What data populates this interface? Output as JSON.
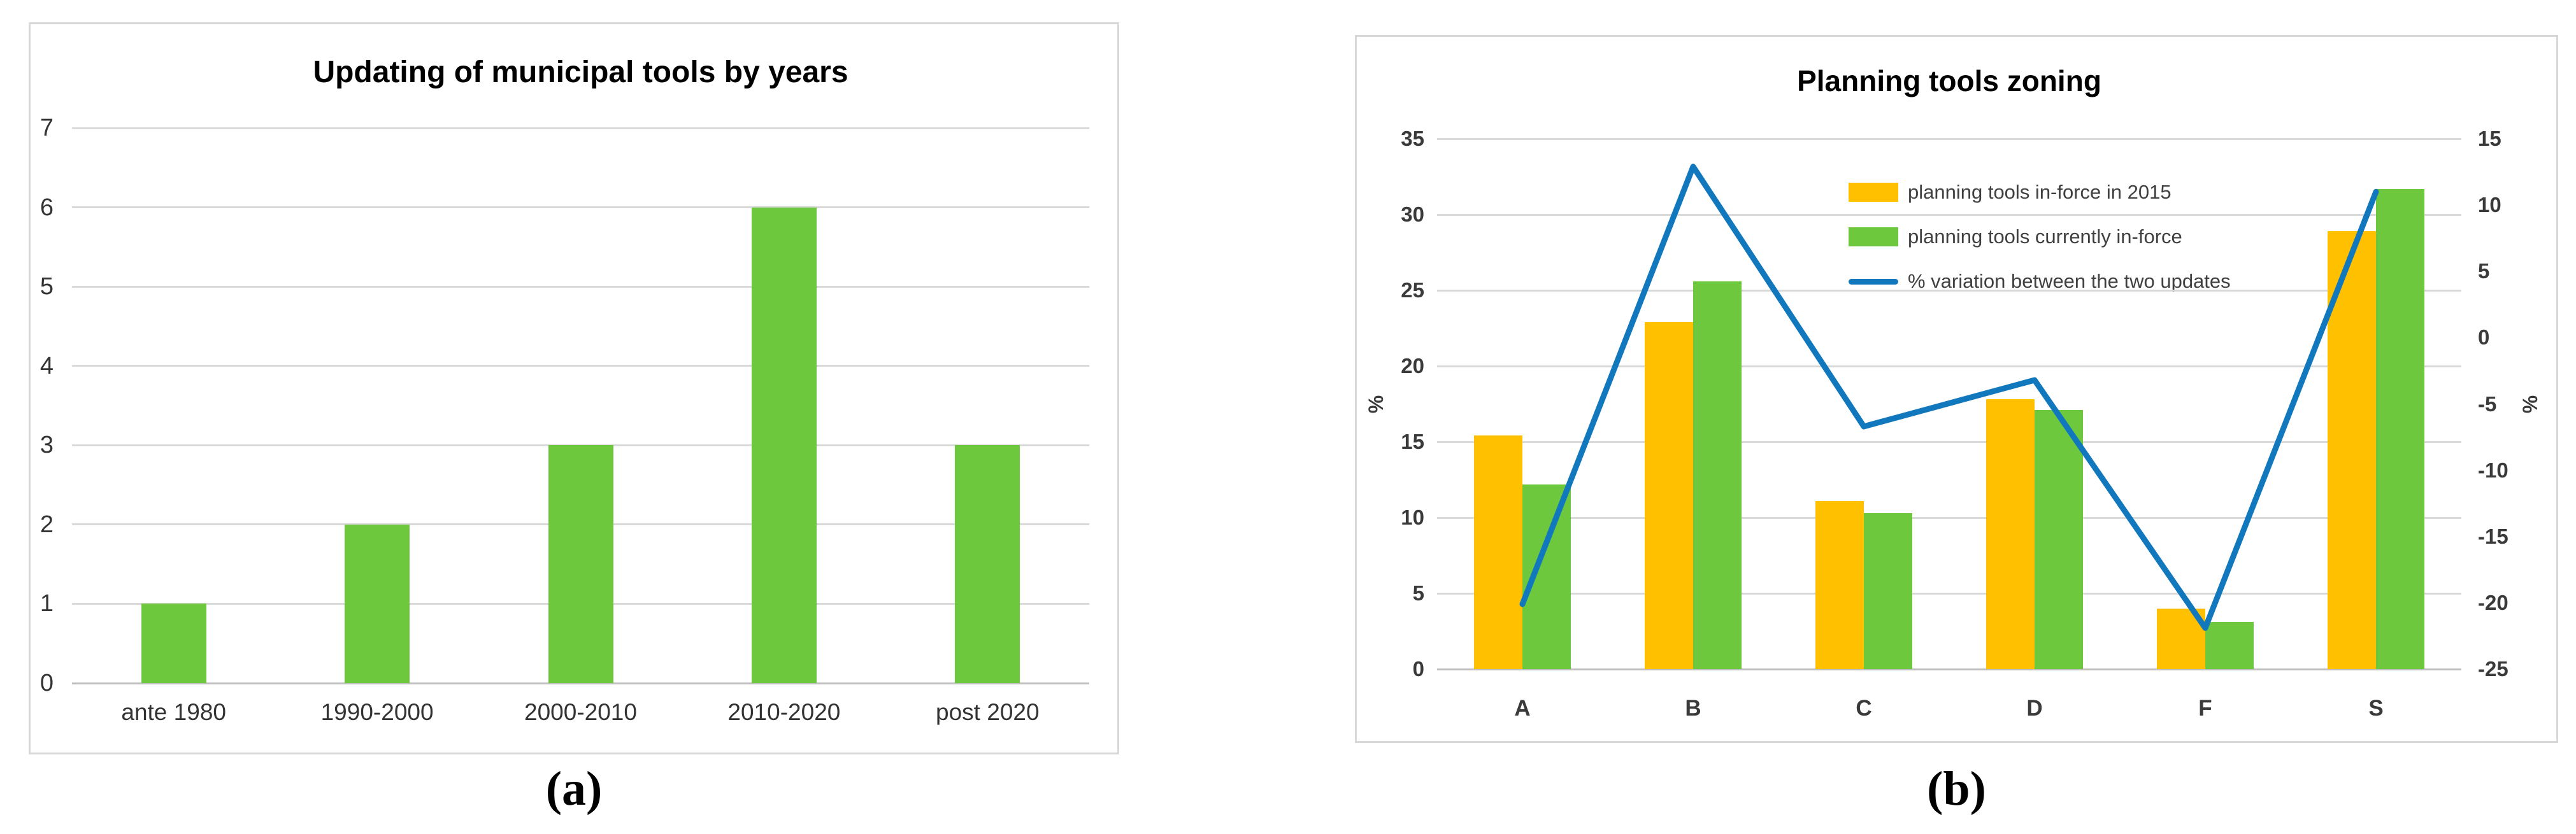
{
  "figure_a": {
    "caption": "(a)",
    "chart_data": {
      "type": "bar",
      "title": "Updating of municipal tools by years",
      "categories": [
        "ante 1980",
        "1990-2000",
        "2000-2010",
        "2010-2020",
        "post 2020"
      ],
      "values": [
        1,
        2,
        3,
        6,
        3
      ],
      "ylim": [
        0,
        7
      ],
      "ytick_step": 1,
      "xlabel": "",
      "ylabel": "",
      "grid": "horizontal",
      "legend_position": "none",
      "bar_color": "#6DC83E",
      "gridline_color": "#d9d9d9",
      "axis_color": "#bfbfbf"
    }
  },
  "figure_b": {
    "caption": "(b)",
    "chart_data": {
      "type": "bar+line",
      "title": "Planning tools zoning",
      "categories": [
        "A",
        "B",
        "C",
        "D",
        "F",
        "S"
      ],
      "series": [
        {
          "name": "planning tools in-force in 2015",
          "type": "bar",
          "axis": "left",
          "color": "#FFC000",
          "values": [
            15.4,
            22.9,
            11.1,
            17.8,
            4.0,
            28.9
          ]
        },
        {
          "name": "planning tools currently in-force",
          "type": "bar",
          "axis": "left",
          "color": "#6DC83E",
          "values": [
            12.2,
            25.6,
            10.3,
            17.1,
            3.1,
            31.7
          ]
        },
        {
          "name": "% variation between the two updates",
          "type": "line",
          "axis": "right",
          "color": "#1278BE",
          "values": [
            -20.1,
            12.9,
            -6.7,
            -3.2,
            -21.9,
            11.0
          ]
        }
      ],
      "left_axis": {
        "label": "%",
        "min": 0,
        "max": 35,
        "step": 5
      },
      "right_axis": {
        "label": "%",
        "min": -25,
        "max": 15,
        "step": 5
      },
      "grid": "horizontal",
      "legend_position": "top-center",
      "gridline_color": "#d9d9d9",
      "axis_color": "#bfbfbf"
    }
  }
}
